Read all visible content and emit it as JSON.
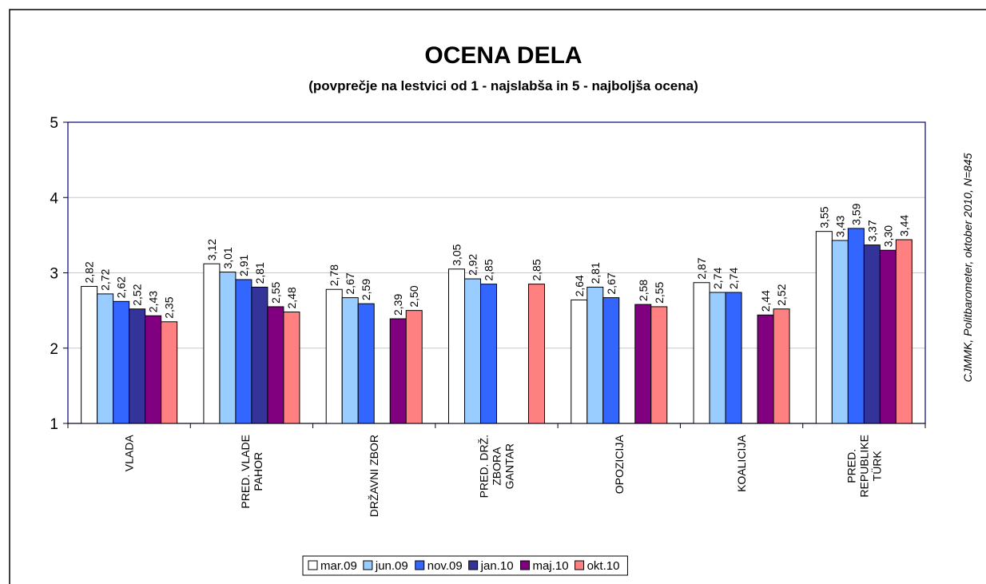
{
  "chart_data": {
    "type": "bar",
    "title": "OCENA DELA",
    "subtitle": "(povprečje na lestvici od 1 - najslabša in 5 - najboljša ocena)",
    "source": "CJMMK, Politbarometer, oktober 2010, N=845",
    "categories": [
      "VLADA",
      "PRED. VLADE\nPAHOR",
      "DRŽAVNI ZBOR",
      "PRED. DRŽ.\nZBORA\nGANTAR",
      "OPOZICIJA",
      "KOALICIJA",
      "PRED.\nREPUBLIKE\nTÜRK"
    ],
    "series": [
      {
        "name": "mar.09",
        "color": "#ffffff",
        "values": [
          2.82,
          3.12,
          2.78,
          3.05,
          2.64,
          2.87,
          3.55
        ],
        "value_labels": [
          "2,82",
          "3,12",
          "2,78",
          "3,05",
          "2,64",
          "2,87",
          "3,55"
        ]
      },
      {
        "name": "jun.09",
        "color": "#99ccff",
        "values": [
          2.72,
          3.01,
          2.67,
          2.92,
          2.81,
          2.74,
          3.43
        ],
        "value_labels": [
          "2,72",
          "3,01",
          "2,67",
          "2,92",
          "2,81",
          "2,74",
          "3,43"
        ]
      },
      {
        "name": "nov.09",
        "color": "#3366ff",
        "values": [
          2.62,
          2.91,
          2.59,
          2.85,
          2.67,
          2.74,
          3.59
        ],
        "value_labels": [
          "2,62",
          "2,91",
          "2,59",
          "2,85",
          "2,67",
          "2,74",
          "3,59"
        ]
      },
      {
        "name": "jan.10",
        "color": "#333399",
        "values": [
          2.52,
          2.81,
          null,
          null,
          null,
          null,
          3.37
        ],
        "value_labels": [
          "2,52",
          "2,81",
          null,
          null,
          null,
          null,
          "3,37"
        ]
      },
      {
        "name": "maj.10",
        "color": "#800080",
        "values": [
          2.43,
          2.55,
          2.39,
          null,
          2.58,
          2.44,
          3.3
        ],
        "value_labels": [
          "2,43",
          "2,55",
          "2,39",
          null,
          "2,58",
          "2,44",
          "3,30"
        ]
      },
      {
        "name": "okt.10",
        "color": "#ff8080",
        "values": [
          2.35,
          2.48,
          2.5,
          2.85,
          2.55,
          2.52,
          3.44
        ],
        "value_labels": [
          "2,35",
          "2,48",
          "2,50",
          "2,85",
          "2,55",
          "2,52",
          "3,44"
        ]
      }
    ],
    "ylim": [
      1,
      5
    ],
    "yticks": [
      1,
      2,
      3,
      4,
      5
    ],
    "grid": true,
    "legend": "bottom"
  }
}
